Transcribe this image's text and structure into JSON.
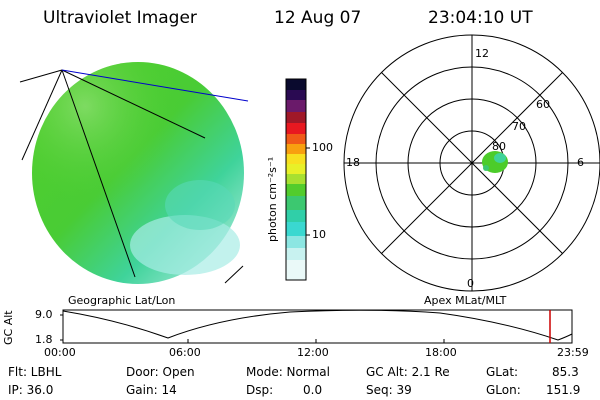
{
  "header": {
    "instrument": "Ultraviolet Imager",
    "date": "12 Aug 07",
    "time": "23:04:10 UT"
  },
  "colorbar": {
    "unit_label": "photon cm⁻²s⁻¹",
    "ticks": [
      "100",
      "10"
    ]
  },
  "polar_plot": {
    "mlt_labels": [
      "12",
      "18",
      "6",
      "0"
    ],
    "mlat_labels": [
      "60",
      "70",
      "80"
    ]
  },
  "panel_labels": {
    "left": "Geographic Lat/Lon",
    "right": "Apex MLat/MLT"
  },
  "timeline": {
    "ylabel": "GC Alt",
    "yticks": [
      "9.0",
      "1.8"
    ],
    "xticks": [
      "00:00",
      "06:00",
      "12:00",
      "18:00",
      "23:59"
    ]
  },
  "info": {
    "filter": "Flt: LBHL",
    "ip": "IP: 36.0",
    "door": "Door: Open",
    "gain": "Gain: 14",
    "mode": "Mode: Normal",
    "dsp": "Dsp:",
    "dsp_value": "0.0",
    "gc_alt": "GC Alt: 2.1 Re",
    "seq": "Seq: 39",
    "glat": "GLat:",
    "glat_value": "85.3",
    "glon": "GLon:",
    "glon_value": "151.9"
  },
  "colors": {
    "background": "#ffffff",
    "earth_green": "#4ccc2a",
    "earth_cyan": "#6fdcc8",
    "current_time_marker": "#cc0000",
    "sun_line": "#0000cc"
  }
}
